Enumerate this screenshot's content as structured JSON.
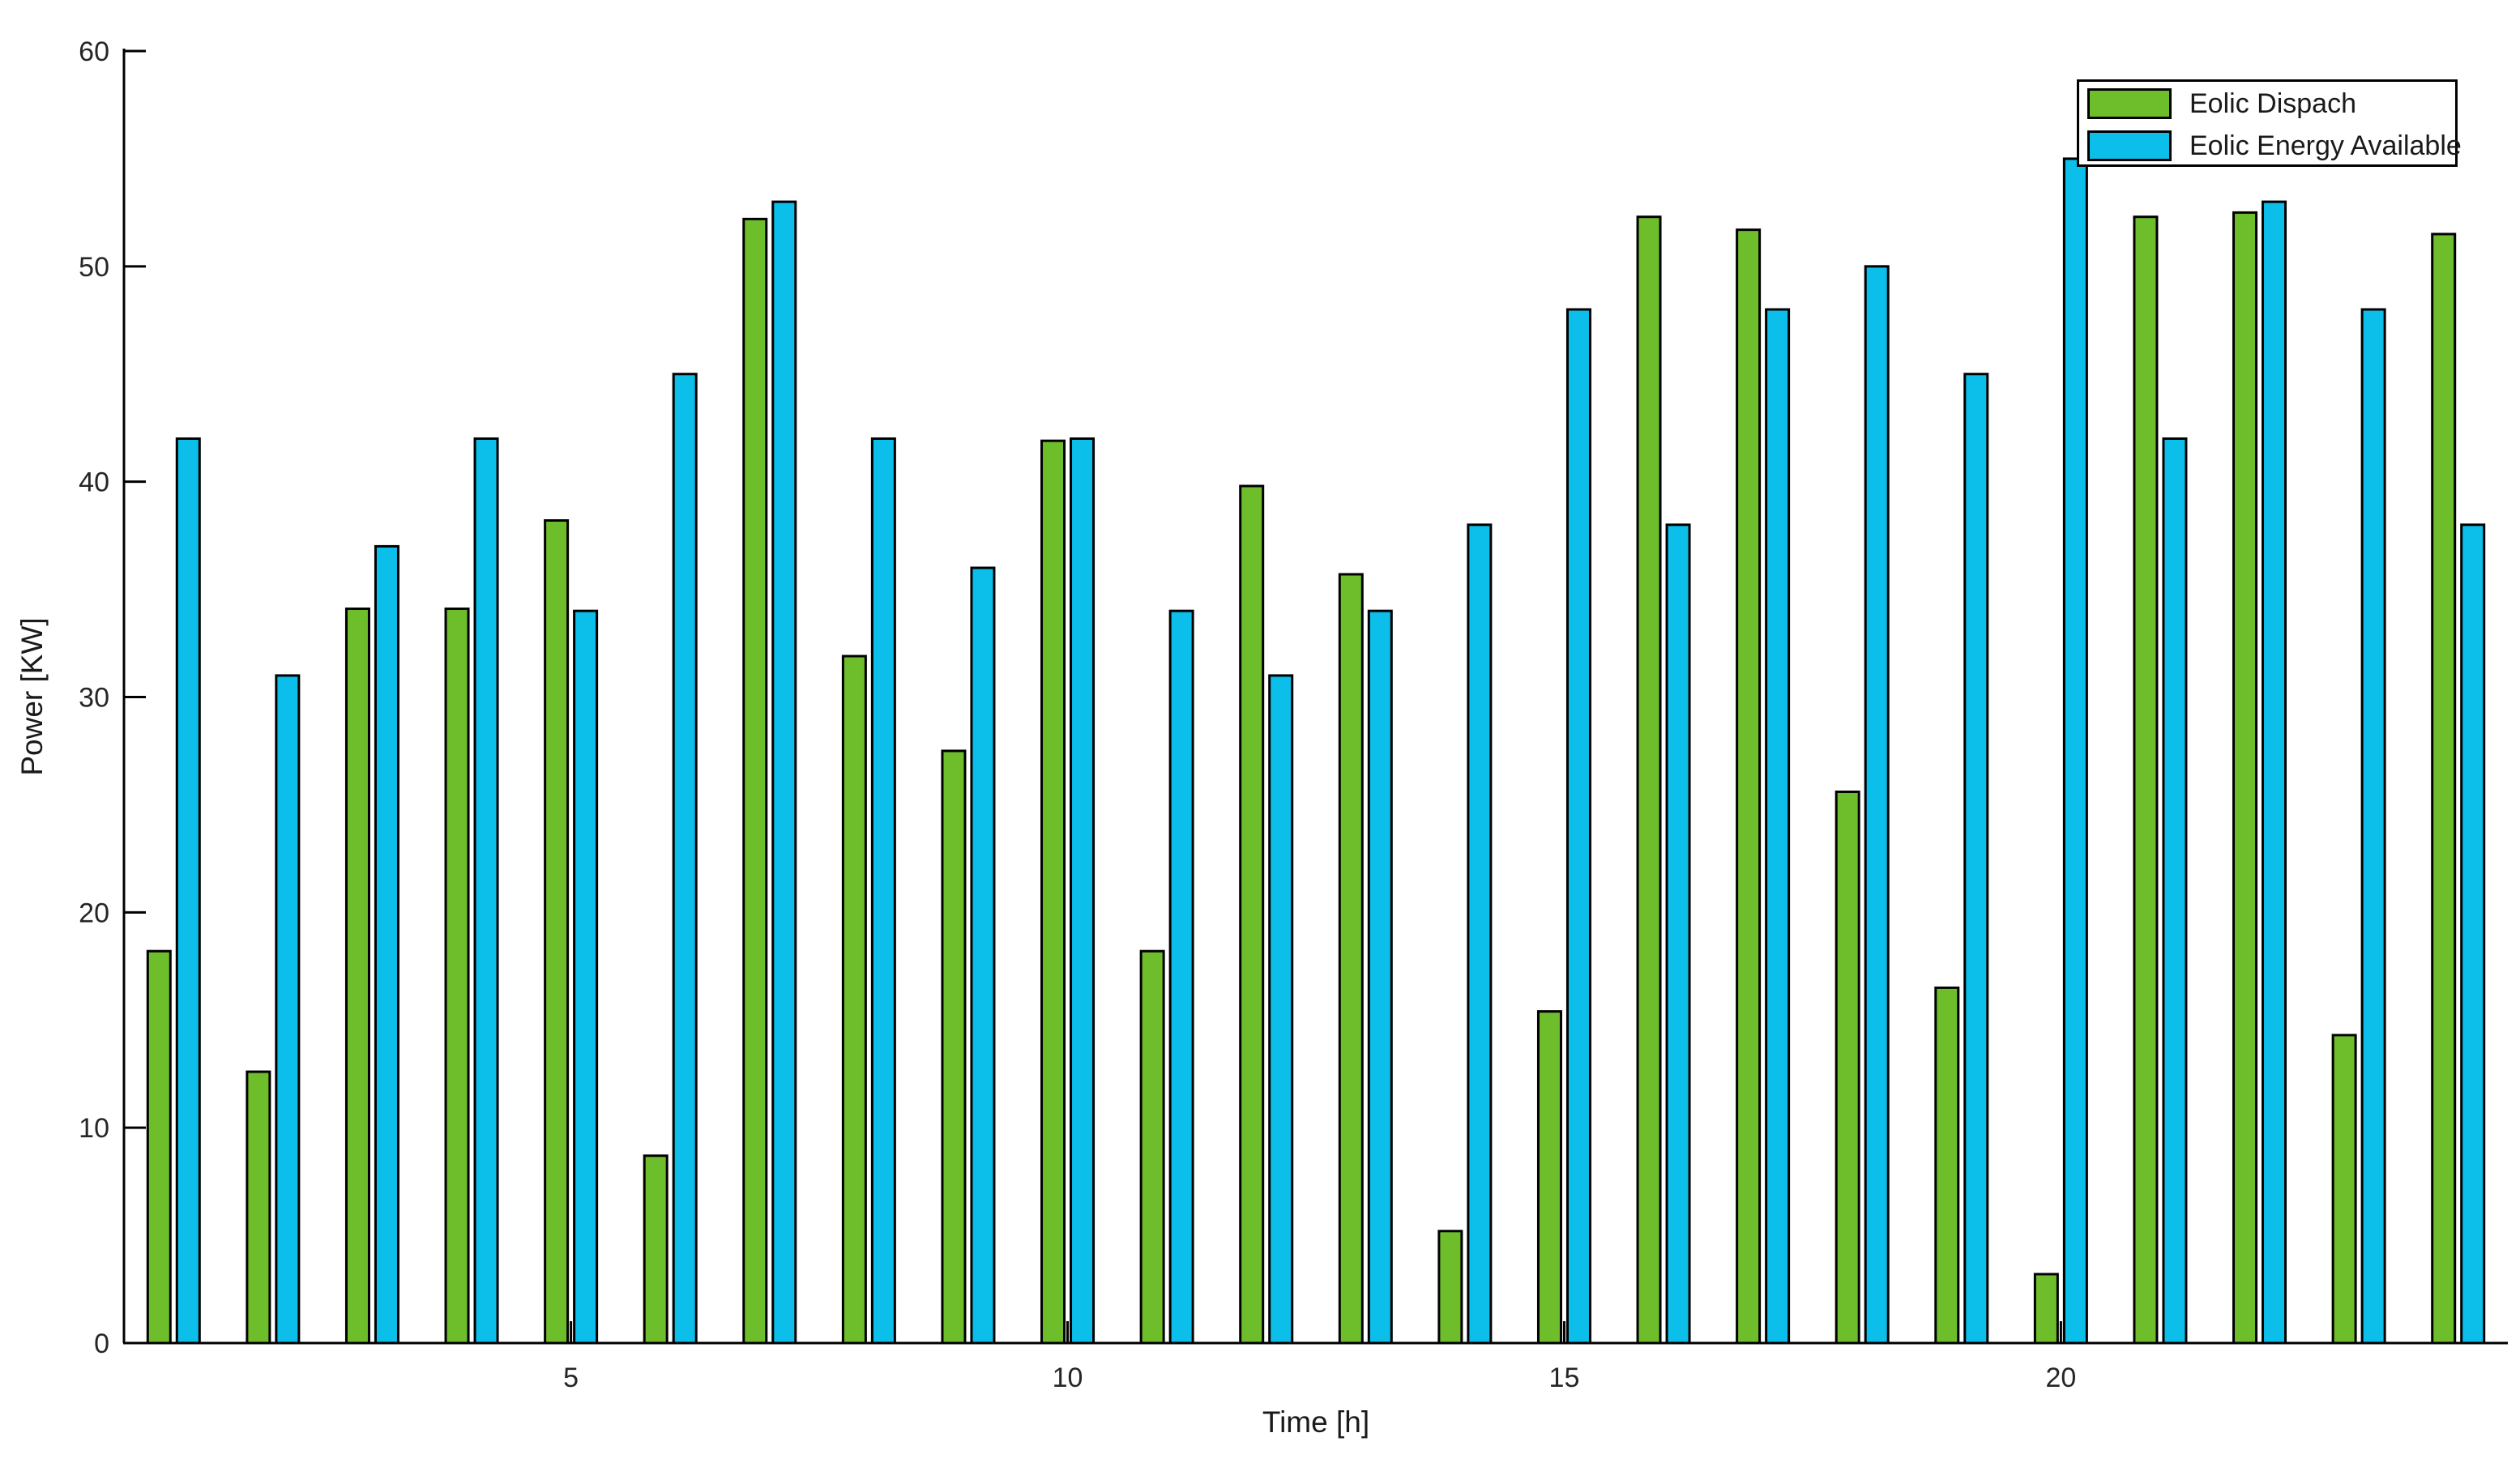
{
  "figure": {
    "background": "#ffffff",
    "axis_color": "#000000",
    "text_color": "#262626"
  },
  "chart_data": {
    "type": "bar",
    "title": "",
    "xlabel": "Time [h]",
    "ylabel": "Power [KW]",
    "x": [
      1,
      2,
      3,
      4,
      5,
      6,
      7,
      8,
      9,
      10,
      11,
      12,
      13,
      14,
      15,
      16,
      17,
      18,
      19,
      20,
      21,
      22,
      23,
      24
    ],
    "xticks": [
      5,
      10,
      15,
      20
    ],
    "ylim": [
      0,
      60
    ],
    "yticks": [
      0,
      10,
      20,
      30,
      40,
      50,
      60
    ],
    "grid": false,
    "legend_position": "top-right",
    "series": [
      {
        "name": "Eolic Dispach",
        "color": "#6EBD2B",
        "edge_color": "#000000",
        "values": [
          18.2,
          12.6,
          34.1,
          34.1,
          38.2,
          8.7,
          52.2,
          31.9,
          27.5,
          41.9,
          18.2,
          39.8,
          35.7,
          5.2,
          15.4,
          52.3,
          51.7,
          25.6,
          16.5,
          3.2,
          52.3,
          52.5,
          14.3,
          51.5
        ]
      },
      {
        "name": "Eolic Energy Available",
        "color": "#0CBEEA",
        "edge_color": "#000000",
        "values": [
          42,
          31,
          37,
          42,
          34,
          45,
          53,
          42,
          36,
          42,
          34,
          31,
          34,
          38,
          48,
          38,
          48,
          50,
          45,
          55,
          42,
          53,
          48,
          38
        ]
      }
    ]
  }
}
